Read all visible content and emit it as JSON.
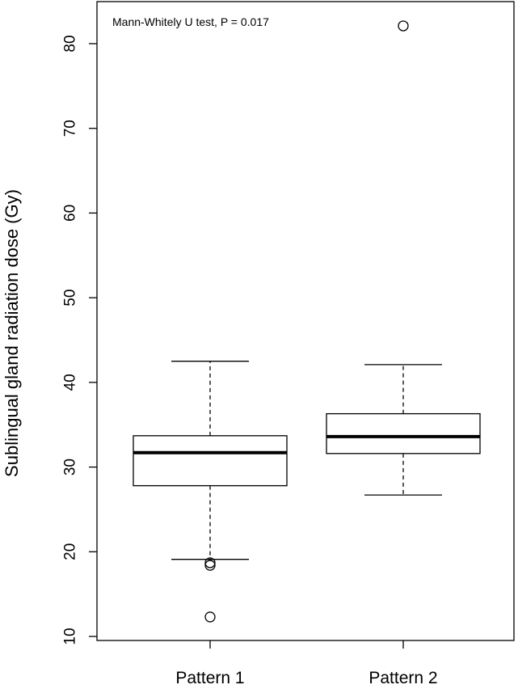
{
  "chart_data": {
    "type": "boxplot",
    "title": "",
    "xlabel": "",
    "ylabel": "Sublingual gland radiation dose (Gy)",
    "annotation": "Mann-Whitely U test, P = 0.017",
    "ylim": [
      10,
      83
    ],
    "yticks": [
      10,
      20,
      30,
      40,
      50,
      60,
      70,
      80
    ],
    "grid": false,
    "categories": [
      "Pattern 1",
      "Pattern 2"
    ],
    "boxes": [
      {
        "category": "Pattern 1",
        "whisker_low": 19.1,
        "q1": 27.8,
        "median": 31.7,
        "q3": 33.7,
        "whisker_high": 42.5,
        "outliers": [
          18.7,
          18.4,
          12.3
        ]
      },
      {
        "category": "Pattern 2",
        "whisker_low": 26.7,
        "q1": 31.6,
        "median": 33.6,
        "q3": 36.3,
        "whisker_high": 42.1,
        "outliers": [
          82.1
        ]
      }
    ]
  }
}
